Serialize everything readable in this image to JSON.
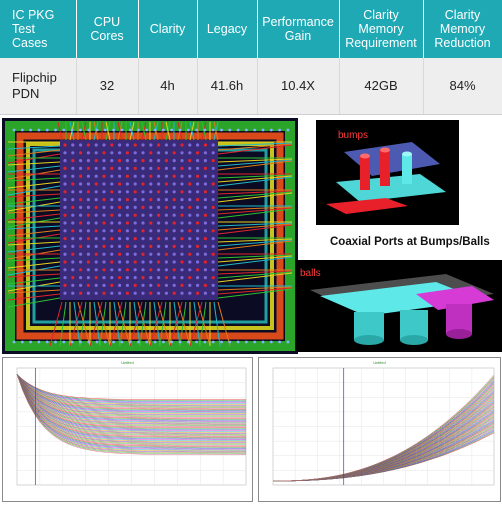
{
  "table": {
    "headers": [
      "IC PKG Test Cases",
      "CPU Cores",
      "Clarity",
      "Legacy",
      "Performance Gain",
      "Clarity Memory Requirement",
      "Clarity Memory Reduction"
    ],
    "row": [
      "Flipchip PDN",
      "32",
      "4h",
      "41.6h",
      "10.4X",
      "42GB",
      "84%"
    ]
  },
  "labels": {
    "bumps": "bumps",
    "balls": "balls",
    "coaxial": "Coaxial Ports at Bumps/Balls"
  },
  "colors": {
    "header_bg": "#1ea9b5",
    "row_bg": "#eeeeee",
    "pcb_bg": "#0b0b24",
    "pcb_die": "#3a2a7a",
    "port_cyan": "#5fe8e8",
    "port_red": "#e8202a",
    "port_magenta": "#d63bd6"
  },
  "plots": {
    "left_title": "Unified",
    "right_title": "Unified"
  }
}
